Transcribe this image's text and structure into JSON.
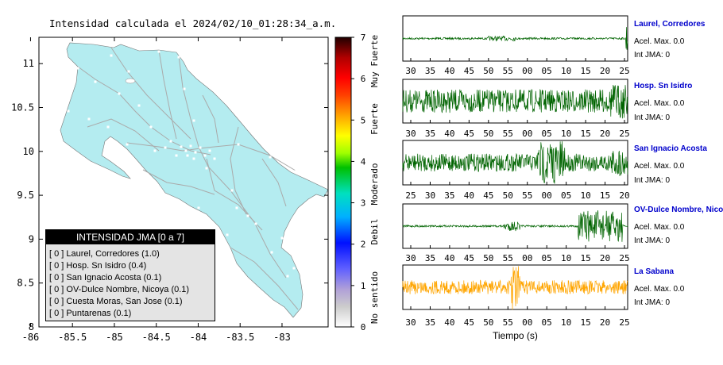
{
  "map": {
    "title": "Intensidad calculada el 2024/02/10_01:28:34_a.m.",
    "lat_ticks": [
      "11",
      "10.5",
      "10",
      "9.5",
      "9",
      "8.5",
      "8"
    ],
    "lon_ticks": [
      "-86",
      "-85.5",
      "-85",
      "-84.5",
      "-84",
      "-83.5",
      "-83"
    ],
    "land_color": "#b4ecf0",
    "road_color": "#aaaaaa"
  },
  "colorbar": {
    "ticks": [
      "7",
      "6",
      "5",
      "4",
      "3",
      "2",
      "1",
      "0"
    ],
    "categories": [
      "Muy Fuerte",
      "Fuerte",
      "Moderado",
      "Debil",
      "No sentido"
    ]
  },
  "legend": {
    "title": "INTENSIDAD JMA [0 a 7]",
    "rows": [
      "[ 0 ]  Laurel, Corredores (1.0)",
      "[ 0 ]  Hosp. Sn Isidro (0.4)",
      "[ 0 ]  San Ignacio Acosta (0.1)",
      "[ 0 ]  OV-Dulce Nombre, Nicoya (0.1)",
      "[ 0 ]  Cuesta Moras, San Jose (0.1)",
      "[ 0 ]  Puntarenas (0.1)"
    ]
  },
  "stations": [
    {
      "name": "Laurel, Corredores",
      "acel": "Acel. Max. 0.0",
      "int": "Int JMA: 0",
      "ticks": [
        "30",
        "35",
        "40",
        "45",
        "50",
        "55",
        "00",
        "05",
        "10",
        "15",
        "20",
        "25"
      ],
      "color": "#006400"
    },
    {
      "name": "Hosp. Sn Isidro",
      "acel": "Acel. Max. 0.0",
      "int": "Int JMA: 0",
      "ticks": [
        "30",
        "35",
        "40",
        "45",
        "50",
        "55",
        "00",
        "05",
        "10",
        "15",
        "20",
        "25"
      ],
      "color": "#006400"
    },
    {
      "name": "San Ignacio Acosta",
      "acel": "Acel. Max. 0.0",
      "int": "Int JMA: 0",
      "ticks": [
        "25",
        "30",
        "35",
        "40",
        "45",
        "50",
        "55",
        "00",
        "05",
        "10",
        "15",
        "20"
      ],
      "color": "#006400"
    },
    {
      "name": "OV-Dulce Nombre, Nicoya",
      "acel": "Acel. Max. 0.0",
      "int": "Int JMA: 0",
      "ticks": [
        "30",
        "35",
        "40",
        "45",
        "50",
        "55",
        "00",
        "05",
        "10",
        "15",
        "20",
        "25"
      ],
      "color": "#006400"
    },
    {
      "name": "La Sabana",
      "acel": "Acel. Max. 0.0",
      "int": "Int JMA: 0",
      "ticks": [
        "30",
        "35",
        "40",
        "45",
        "50",
        "55",
        "00",
        "05",
        "10",
        "15",
        "20",
        "25"
      ],
      "color": "#ffa500"
    }
  ],
  "xlabel": "Tiempo (s)"
}
